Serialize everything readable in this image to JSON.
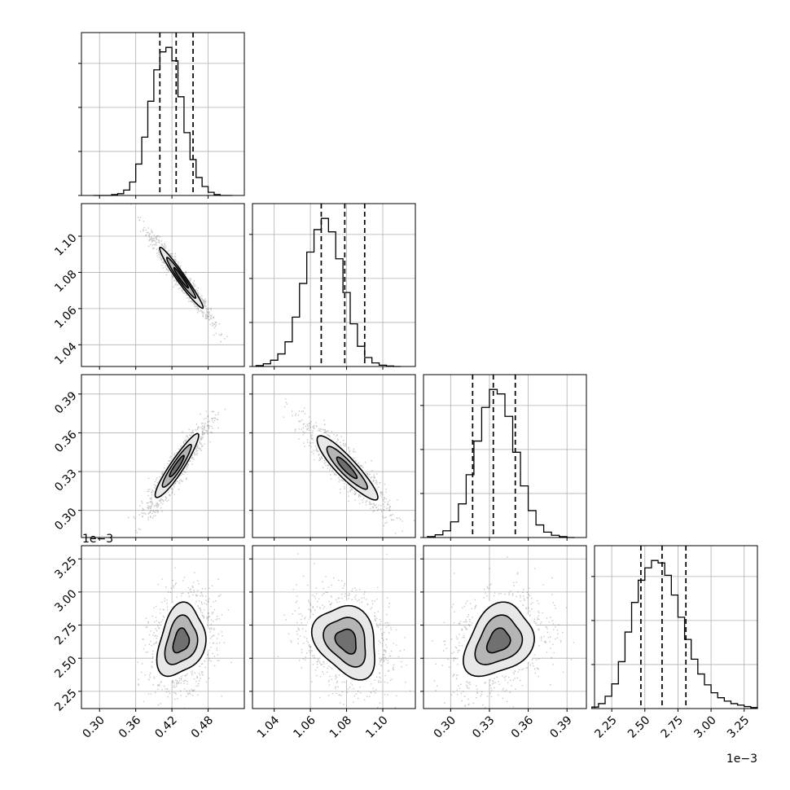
{
  "chart_data": {
    "type": "corner",
    "grid": true,
    "parameters": [
      {
        "index": 0,
        "range": [
          0.27,
          0.54
        ],
        "ticks": [
          0.3,
          0.36,
          0.42,
          0.48
        ],
        "tick_labels": [
          "0.30",
          "0.36",
          "0.42",
          "0.48"
        ],
        "quantiles": [
          0.4,
          0.427,
          0.455
        ],
        "histogram": {
          "bin_edges": [
            0.29,
            0.3,
            0.31,
            0.32,
            0.33,
            0.34,
            0.35,
            0.36,
            0.37,
            0.38,
            0.39,
            0.4,
            0.41,
            0.42,
            0.43,
            0.44,
            0.45,
            0.46,
            0.47,
            0.48,
            0.49,
            0.5,
            0.51,
            0.52
          ],
          "counts": [
            0,
            0,
            0,
            2,
            4,
            12,
            30,
            70,
            130,
            210,
            280,
            320,
            330,
            300,
            220,
            140,
            80,
            40,
            20,
            7,
            2,
            0,
            0
          ]
        }
      },
      {
        "index": 1,
        "range": [
          1.028,
          1.118
        ],
        "ticks": [
          1.04,
          1.06,
          1.08,
          1.1
        ],
        "tick_labels": [
          "1.04",
          "1.06",
          "1.08",
          "1.10"
        ],
        "quantiles": [
          1.066,
          1.079,
          1.09
        ],
        "histogram": {
          "bin_edges": [
            1.03,
            1.034,
            1.038,
            1.042,
            1.046,
            1.05,
            1.054,
            1.058,
            1.062,
            1.066,
            1.07,
            1.074,
            1.078,
            1.082,
            1.086,
            1.09,
            1.094,
            1.098,
            1.102,
            1.106,
            1.11
          ],
          "counts": [
            2,
            6,
            14,
            28,
            55,
            110,
            185,
            255,
            305,
            330,
            300,
            240,
            165,
            95,
            45,
            20,
            8,
            3,
            1,
            0
          ]
        }
      },
      {
        "index": 2,
        "range": [
          0.279,
          0.405
        ],
        "ticks": [
          0.3,
          0.33,
          0.36,
          0.39
        ],
        "tick_labels": [
          "0.30",
          "0.33",
          "0.36",
          "0.39"
        ],
        "quantiles": [
          0.317,
          0.333,
          0.35
        ],
        "histogram": {
          "bin_edges": [
            0.282,
            0.288,
            0.294,
            0.3,
            0.306,
            0.312,
            0.318,
            0.324,
            0.33,
            0.336,
            0.342,
            0.348,
            0.354,
            0.36,
            0.366,
            0.372,
            0.378,
            0.384,
            0.39,
            0.396
          ],
          "counts": [
            2,
            6,
            15,
            35,
            75,
            140,
            215,
            290,
            330,
            320,
            270,
            190,
            115,
            60,
            28,
            12,
            5,
            2,
            0
          ]
        }
      },
      {
        "index": 3,
        "range": [
          2.12,
          3.35
        ],
        "ticks": [
          2.25,
          2.5,
          2.75,
          3.0,
          3.25
        ],
        "tick_labels": [
          "2.25",
          "2.50",
          "2.75",
          "3.00",
          "3.25"
        ],
        "offset_label": "1e−3",
        "quantiles": [
          2.47,
          2.63,
          2.81
        ],
        "histogram": {
          "bin_edges": [
            2.1,
            2.15,
            2.2,
            2.25,
            2.3,
            2.35,
            2.4,
            2.45,
            2.5,
            2.55,
            2.6,
            2.65,
            2.7,
            2.75,
            2.8,
            2.85,
            2.9,
            2.95,
            3.0,
            3.05,
            3.1,
            3.15,
            3.2,
            3.25,
            3.3,
            3.35
          ],
          "counts": [
            3,
            10,
            25,
            50,
            95,
            155,
            215,
            260,
            285,
            300,
            295,
            270,
            230,
            185,
            140,
            100,
            70,
            48,
            32,
            22,
            15,
            10,
            7,
            4,
            2
          ]
        }
      }
    ],
    "pairs": [
      {
        "x": 0,
        "y": 1,
        "center": [
          0.435,
          1.077
        ],
        "sd": [
          0.024,
          0.0112
        ],
        "rho": -0.97
      },
      {
        "x": 0,
        "y": 2,
        "center": [
          0.428,
          0.334
        ],
        "sd": [
          0.024,
          0.0165
        ],
        "rho": 0.93
      },
      {
        "x": 0,
        "y": 3,
        "center": [
          0.435,
          2.63
        ],
        "sd": [
          0.026,
          0.18
        ],
        "rho": 0.25
      },
      {
        "x": 1,
        "y": 2,
        "center": [
          1.08,
          0.333
        ],
        "sd": [
          0.0112,
          0.0165
        ],
        "rho": -0.9
      },
      {
        "x": 1,
        "y": 3,
        "center": [
          1.08,
          2.63
        ],
        "sd": [
          0.0115,
          0.18
        ],
        "rho": -0.25
      },
      {
        "x": 2,
        "y": 3,
        "center": [
          0.337,
          2.63
        ],
        "sd": [
          0.0175,
          0.18
        ],
        "rho": 0.28
      }
    ],
    "contour_levels_sigma": [
      0.5,
      1.0,
      1.5
    ]
  }
}
